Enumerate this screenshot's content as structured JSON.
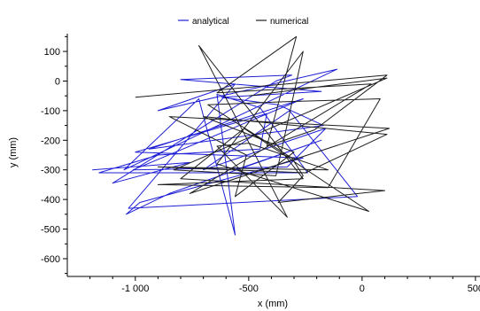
{
  "chart_data": {
    "type": "line",
    "title": "",
    "xlabel": "x (mm)",
    "ylabel": "y (mm)",
    "xlim": [
      -1300,
      520
    ],
    "ylim": [
      -660,
      160
    ],
    "x_ticks": [
      {
        "value": -1000,
        "label": "-1 000"
      },
      {
        "value": -500,
        "label": "-500"
      },
      {
        "value": 0,
        "label": "0"
      },
      {
        "value": 500,
        "label": "500"
      }
    ],
    "y_ticks": [
      {
        "value": 100,
        "label": "100"
      },
      {
        "value": 0,
        "label": "0"
      },
      {
        "value": -100,
        "label": "-100"
      },
      {
        "value": -200,
        "label": "-200"
      },
      {
        "value": -300,
        "label": "-300"
      },
      {
        "value": -400,
        "label": "-400"
      },
      {
        "value": -500,
        "label": "-500"
      },
      {
        "value": -600,
        "label": "-600"
      }
    ],
    "grid": false,
    "legend_position": "top-center",
    "series": [
      {
        "name": "analytical",
        "color": "#1f1fd6",
        "x": [
          -1190,
          -760,
          -1100,
          -380,
          -310,
          -800,
          -180,
          -620,
          -370,
          -170,
          -940,
          -260,
          -1010,
          -330,
          -160,
          -700,
          -320,
          -20,
          -1030,
          -560,
          -900,
          -110,
          -1050,
          -720,
          -560,
          -640,
          -450,
          -240,
          -1160,
          -900,
          -450,
          -420,
          -1000,
          -260,
          -980,
          -1040,
          -850,
          -180,
          -560
        ],
        "y": [
          -300,
          -275,
          -345,
          0,
          20,
          5,
          -35,
          -55,
          -80,
          -150,
          -230,
          -60,
          -300,
          -290,
          -160,
          -300,
          -100,
          -390,
          -430,
          -10,
          -100,
          40,
          -300,
          -60,
          -520,
          -45,
          -90,
          -310,
          -310,
          -250,
          -230,
          -110,
          -240,
          -260,
          -410,
          -450,
          -380,
          -200,
          -300
        ]
      },
      {
        "name": "numerical",
        "color": "#1e1e1e",
        "x": [
          -1000,
          110,
          -210,
          -420,
          -290,
          -640,
          40,
          -760,
          120,
          -850,
          -510,
          -560,
          -300,
          -700,
          110,
          -250,
          -900,
          -150,
          -500,
          -640,
          -330,
          -720,
          -260,
          -900,
          -150,
          80,
          -350,
          -680,
          -310,
          -260,
          -370,
          100,
          -800,
          -520,
          30,
          -640,
          -260,
          -380,
          -830,
          110,
          -500
        ],
        "y": [
          -55,
          20,
          -165,
          -220,
          150,
          -40,
          -10,
          -380,
          -160,
          -120,
          -250,
          -390,
          -240,
          -120,
          -180,
          -310,
          -290,
          -300,
          -210,
          -220,
          -460,
          120,
          -330,
          -350,
          -360,
          -60,
          -70,
          -80,
          -260,
          -320,
          -410,
          -370,
          -330,
          -160,
          -440,
          -280,
          100,
          -320,
          -300,
          10,
          -50
        ]
      }
    ]
  }
}
